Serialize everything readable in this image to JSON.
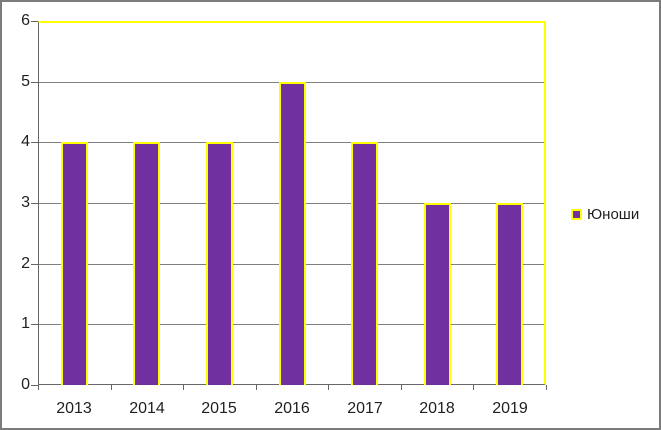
{
  "chart_data": {
    "type": "bar",
    "title": "",
    "xlabel": "",
    "ylabel": "",
    "categories": [
      "2013",
      "2014",
      "2015",
      "2016",
      "2017",
      "2018",
      "2019"
    ],
    "series": [
      {
        "name": "Юноши",
        "values": [
          4,
          4,
          4,
          5,
          4,
          3,
          3
        ]
      }
    ],
    "ylim": [
      0,
      6
    ],
    "yticks": [
      0,
      1,
      2,
      3,
      4,
      5,
      6
    ],
    "ytick_labels": [
      "0",
      "1",
      "2",
      "3",
      "4",
      "5",
      "6"
    ],
    "grid": true,
    "legend_position": "right",
    "colors": {
      "bar_fill": "#7030A0",
      "bar_border": "#FFFF00",
      "plot_border": "#FFFF00",
      "gridline": "#808080",
      "axis": "#666666",
      "text": "#1F1F1F",
      "frame_border": "#7B7B7B",
      "background": "#FFFFFF"
    }
  },
  "legend": {
    "items": [
      {
        "label": "Юноши",
        "swatch_color": "#7030A0",
        "swatch_border": "#FFFF00"
      }
    ]
  }
}
